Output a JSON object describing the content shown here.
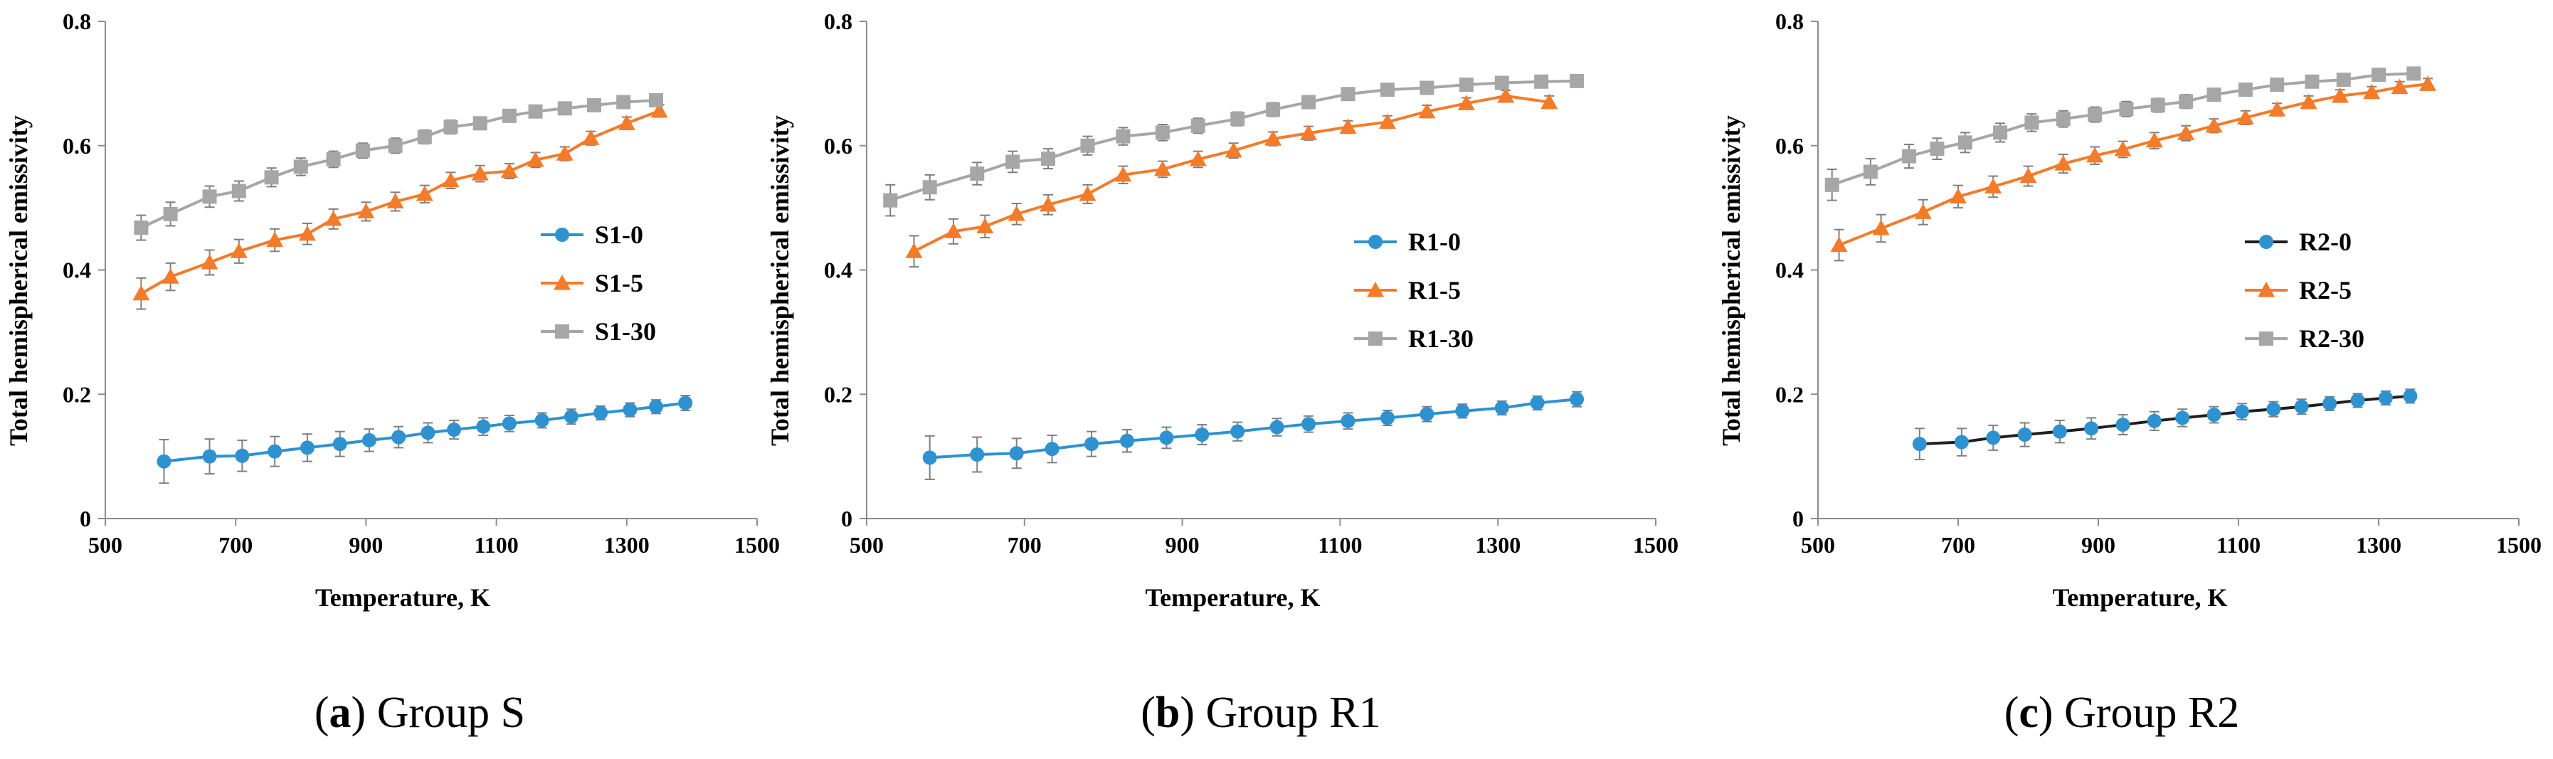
{
  "colors": {
    "blue": "#2e92d0",
    "orange": "#f47b2a",
    "gray": "#a6a6a6",
    "axis": "#8c8c8c",
    "errorbar": "#7f7f7f",
    "r2_line": "#1f1f1f"
  },
  "chart_data": [
    {
      "type": "line",
      "panel_letter": "a",
      "caption": "Group S",
      "xlabel": "Temperature,    K",
      "ylabel": "Total hemispherical emissivity",
      "xlim": [
        500,
        1500
      ],
      "ylim": [
        0,
        0.8
      ],
      "xticks": [
        "500",
        "700",
        "900",
        "1100",
        "1300",
        "1500"
      ],
      "yticks": [
        "0",
        "0.2",
        "0.4",
        "0.6",
        "0.8"
      ],
      "legend_position": "center-right",
      "series": [
        {
          "name": "S1-0",
          "color": "#2e92d0",
          "marker": "circle",
          "line_color": "#2e92d0",
          "x": [
            590,
            660,
            710,
            760,
            810,
            860,
            905,
            950,
            995,
            1035,
            1080,
            1120,
            1170,
            1215,
            1260,
            1305,
            1345,
            1390
          ],
          "y": [
            0.092,
            0.1,
            0.101,
            0.108,
            0.114,
            0.12,
            0.126,
            0.131,
            0.138,
            0.143,
            0.148,
            0.153,
            0.158,
            0.164,
            0.17,
            0.175,
            0.18,
            0.186
          ],
          "err": [
            0.035,
            0.028,
            0.025,
            0.024,
            0.022,
            0.02,
            0.018,
            0.017,
            0.016,
            0.015,
            0.014,
            0.013,
            0.012,
            0.012,
            0.011,
            0.011,
            0.011,
            0.012
          ]
        },
        {
          "name": "S1-5",
          "color": "#f47b2a",
          "marker": "triangle",
          "line_color": "#f47b2a",
          "x": [
            555,
            600,
            660,
            705,
            760,
            810,
            850,
            900,
            945,
            990,
            1030,
            1075,
            1120,
            1160,
            1205,
            1245,
            1300,
            1350
          ],
          "y": [
            0.362,
            0.389,
            0.412,
            0.43,
            0.448,
            0.458,
            0.482,
            0.494,
            0.51,
            0.522,
            0.544,
            0.555,
            0.559,
            0.577,
            0.587,
            0.612,
            0.636,
            0.656
          ],
          "err": [
            0.025,
            0.022,
            0.02,
            0.019,
            0.018,
            0.017,
            0.016,
            0.015,
            0.015,
            0.014,
            0.013,
            0.013,
            0.012,
            0.012,
            0.011,
            0.011,
            0.01,
            0.01
          ]
        },
        {
          "name": "S1-30",
          "color": "#a6a6a6",
          "marker": "square",
          "line_color": "#a6a6a6",
          "x": [
            555,
            600,
            660,
            705,
            755,
            800,
            850,
            895,
            945,
            990,
            1030,
            1075,
            1120,
            1160,
            1205,
            1250,
            1295,
            1345
          ],
          "y": [
            0.468,
            0.49,
            0.518,
            0.527,
            0.549,
            0.566,
            0.578,
            0.592,
            0.6,
            0.614,
            0.63,
            0.636,
            0.648,
            0.655,
            0.66,
            0.665,
            0.67,
            0.673
          ],
          "err": [
            0.02,
            0.019,
            0.017,
            0.016,
            0.015,
            0.014,
            0.013,
            0.012,
            0.012,
            0.011,
            0.011,
            0.01,
            0.01,
            0.01,
            0.009,
            0.009,
            0.009,
            0.009
          ]
        }
      ]
    },
    {
      "type": "line",
      "panel_letter": "b",
      "caption": "Group R1",
      "xlabel": "Temperature,    K",
      "ylabel": "Total hemispherical emissivity",
      "xlim": [
        500,
        1500
      ],
      "ylim": [
        0,
        0.8
      ],
      "xticks": [
        "500",
        "700",
        "900",
        "1100",
        "1300",
        "1500"
      ],
      "yticks": [
        "0",
        "0.2",
        "0.4",
        "0.6",
        "0.8"
      ],
      "legend_position": "center-right",
      "series": [
        {
          "name": "R1-0",
          "color": "#2e92d0",
          "marker": "circle",
          "line_color": "#2e92d0",
          "x": [
            580,
            640,
            690,
            735,
            785,
            830,
            880,
            925,
            970,
            1020,
            1060,
            1110,
            1160,
            1210,
            1255,
            1305,
            1350,
            1400
          ],
          "y": [
            0.098,
            0.103,
            0.105,
            0.112,
            0.12,
            0.125,
            0.13,
            0.135,
            0.14,
            0.147,
            0.152,
            0.157,
            0.162,
            0.168,
            0.173,
            0.178,
            0.186,
            0.192
          ],
          "err": [
            0.035,
            0.028,
            0.024,
            0.022,
            0.02,
            0.018,
            0.017,
            0.016,
            0.015,
            0.014,
            0.013,
            0.013,
            0.012,
            0.012,
            0.011,
            0.011,
            0.011,
            0.012
          ]
        },
        {
          "name": "R1-5",
          "color": "#f47b2a",
          "marker": "triangle",
          "line_color": "#f47b2a",
          "x": [
            560,
            610,
            650,
            690,
            730,
            780,
            825,
            875,
            920,
            965,
            1015,
            1060,
            1110,
            1160,
            1210,
            1260,
            1310,
            1365
          ],
          "y": [
            0.43,
            0.462,
            0.47,
            0.49,
            0.505,
            0.522,
            0.553,
            0.562,
            0.578,
            0.592,
            0.611,
            0.62,
            0.63,
            0.638,
            0.655,
            0.668,
            0.68,
            0.67
          ],
          "err": [
            0.025,
            0.02,
            0.018,
            0.017,
            0.016,
            0.015,
            0.014,
            0.013,
            0.013,
            0.012,
            0.011,
            0.011,
            0.01,
            0.01,
            0.01,
            0.009,
            0.009,
            0.01
          ]
        },
        {
          "name": "R1-30",
          "color": "#a6a6a6",
          "marker": "square",
          "line_color": "#a6a6a6",
          "x": [
            530,
            580,
            640,
            685,
            730,
            780,
            825,
            875,
            920,
            970,
            1015,
            1060,
            1110,
            1160,
            1210,
            1260,
            1305,
            1355,
            1400
          ],
          "y": [
            0.512,
            0.533,
            0.555,
            0.574,
            0.579,
            0.6,
            0.615,
            0.621,
            0.632,
            0.643,
            0.658,
            0.67,
            0.683,
            0.69,
            0.693,
            0.698,
            0.701,
            0.703,
            0.704
          ],
          "err": [
            0.025,
            0.02,
            0.018,
            0.017,
            0.016,
            0.015,
            0.014,
            0.013,
            0.012,
            0.011,
            0.011,
            0.01,
            0.01,
            0.009,
            0.009,
            0.009,
            0.009,
            0.009,
            0.009
          ]
        }
      ]
    },
    {
      "type": "line",
      "panel_letter": "c",
      "caption": "Group R2",
      "xlabel": "Temperature,    K",
      "ylabel": "Total hemispherical emissivity",
      "xlim": [
        500,
        1500
      ],
      "ylim": [
        0,
        0.8
      ],
      "xticks": [
        "500",
        "700",
        "900",
        "1100",
        "1300",
        "1500"
      ],
      "yticks": [
        "0",
        "0.2",
        "0.4",
        "0.6",
        "0.8"
      ],
      "legend_position": "center-right",
      "series": [
        {
          "name": "R2-0",
          "color": "#2e92d0",
          "marker": "circle",
          "line_color": "#1f1f1f",
          "x": [
            645,
            705,
            750,
            795,
            845,
            890,
            935,
            980,
            1020,
            1065,
            1105,
            1150,
            1190,
            1230,
            1270,
            1310,
            1345
          ],
          "y": [
            0.12,
            0.123,
            0.13,
            0.135,
            0.14,
            0.145,
            0.151,
            0.157,
            0.162,
            0.167,
            0.172,
            0.176,
            0.18,
            0.185,
            0.19,
            0.194,
            0.197
          ],
          "err": [
            0.025,
            0.022,
            0.02,
            0.019,
            0.018,
            0.017,
            0.016,
            0.015,
            0.014,
            0.013,
            0.013,
            0.012,
            0.012,
            0.011,
            0.011,
            0.011,
            0.011
          ]
        },
        {
          "name": "R2-5",
          "color": "#f47b2a",
          "marker": "triangle",
          "line_color": "#f47b2a",
          "x": [
            530,
            590,
            650,
            700,
            750,
            800,
            850,
            895,
            935,
            980,
            1025,
            1065,
            1110,
            1155,
            1200,
            1245,
            1290,
            1330,
            1370
          ],
          "y": [
            0.44,
            0.467,
            0.493,
            0.518,
            0.534,
            0.551,
            0.571,
            0.584,
            0.594,
            0.608,
            0.62,
            0.632,
            0.645,
            0.658,
            0.67,
            0.68,
            0.686,
            0.694,
            0.699
          ],
          "err": [
            0.025,
            0.022,
            0.02,
            0.018,
            0.017,
            0.016,
            0.015,
            0.014,
            0.013,
            0.013,
            0.012,
            0.011,
            0.011,
            0.01,
            0.01,
            0.01,
            0.009,
            0.009,
            0.009
          ]
        },
        {
          "name": "R2-30",
          "color": "#a6a6a6",
          "marker": "square",
          "line_color": "#a6a6a6",
          "x": [
            520,
            575,
            630,
            670,
            710,
            760,
            805,
            850,
            895,
            940,
            985,
            1025,
            1065,
            1110,
            1155,
            1205,
            1250,
            1300,
            1350
          ],
          "y": [
            0.537,
            0.558,
            0.583,
            0.595,
            0.605,
            0.621,
            0.637,
            0.643,
            0.65,
            0.659,
            0.665,
            0.671,
            0.682,
            0.69,
            0.698,
            0.703,
            0.706,
            0.714,
            0.716
          ],
          "err": [
            0.025,
            0.021,
            0.019,
            0.017,
            0.016,
            0.015,
            0.014,
            0.013,
            0.012,
            0.012,
            0.011,
            0.011,
            0.01,
            0.01,
            0.01,
            0.009,
            0.009,
            0.009,
            0.009
          ]
        }
      ]
    }
  ]
}
